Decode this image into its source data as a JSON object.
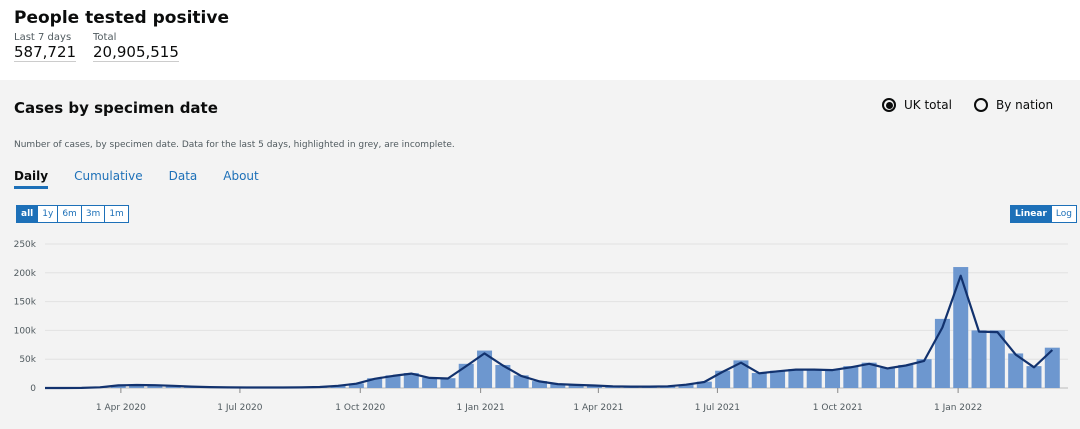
{
  "header": {
    "title": "People tested positive",
    "metrics": [
      {
        "label": "Last 7 days",
        "value": "587,721"
      },
      {
        "label": "Total",
        "value": "20,905,515"
      }
    ]
  },
  "card": {
    "title": "Cases by specimen date",
    "options": [
      {
        "label": "UK total",
        "selected": true
      },
      {
        "label": "By nation",
        "selected": false
      }
    ],
    "description": "Number of cases, by specimen date. Data for the last 5 days, highlighted in grey, are incomplete.",
    "tabs": [
      "Daily",
      "Cumulative",
      "Data",
      "About"
    ],
    "ranges": [
      "all",
      "1y",
      "6m",
      "3m",
      "1m"
    ],
    "scales": [
      "Linear",
      "Log"
    ]
  },
  "chart_data": {
    "type": "bar",
    "x": [
      "2020-02-03",
      "2020-02-17",
      "2020-03-02",
      "2020-03-16",
      "2020-03-30",
      "2020-04-13",
      "2020-04-27",
      "2020-05-11",
      "2020-05-25",
      "2020-06-08",
      "2020-06-22",
      "2020-07-06",
      "2020-07-20",
      "2020-08-03",
      "2020-08-17",
      "2020-08-31",
      "2020-09-14",
      "2020-09-28",
      "2020-10-12",
      "2020-10-26",
      "2020-11-09",
      "2020-11-23",
      "2020-12-07",
      "2020-12-21",
      "2021-01-04",
      "2021-01-18",
      "2021-02-01",
      "2021-02-15",
      "2021-03-01",
      "2021-03-15",
      "2021-03-29",
      "2021-04-12",
      "2021-04-26",
      "2021-05-10",
      "2021-05-24",
      "2021-06-07",
      "2021-06-21",
      "2021-07-05",
      "2021-07-19",
      "2021-08-02",
      "2021-08-16",
      "2021-08-30",
      "2021-09-13",
      "2021-09-27",
      "2021-10-11",
      "2021-10-25",
      "2021-11-08",
      "2021-11-22",
      "2021-12-06",
      "2021-12-20",
      "2022-01-03",
      "2022-01-17",
      "2022-01-31",
      "2022-02-14",
      "2022-02-28",
      "2022-03-14"
    ],
    "series": [
      {
        "color": "#6d97cf",
        "values": [
          0,
          0,
          200,
          1500,
          5000,
          5500,
          5000,
          4000,
          2500,
          1700,
          1200,
          900,
          800,
          900,
          1200,
          1800,
          4000,
          8000,
          17000,
          22000,
          26000,
          18000,
          17000,
          42000,
          65000,
          40000,
          22000,
          12000,
          7000,
          5500,
          4500,
          3000,
          2500,
          2500,
          3000,
          6000,
          11000,
          30000,
          48000,
          26000,
          30000,
          33000,
          33000,
          32000,
          38000,
          44000,
          35000,
          40000,
          50000,
          120000,
          210000,
          100000,
          100000,
          60000,
          38000,
          70000
        ]
      },
      {
        "color": "#12326e",
        "values": [
          0,
          0,
          150,
          1200,
          4500,
          5200,
          4800,
          3800,
          2400,
          1600,
          1100,
          900,
          800,
          900,
          1100,
          1700,
          3800,
          7500,
          16000,
          21000,
          25000,
          17500,
          16500,
          38000,
          60000,
          39000,
          21000,
          11500,
          6800,
          5300,
          4300,
          2900,
          2400,
          2400,
          2900,
          5800,
          10500,
          28000,
          44000,
          25500,
          29000,
          32000,
          32000,
          31000,
          36000,
          42000,
          34000,
          39000,
          47000,
          105000,
          195000,
          98000,
          97000,
          58000,
          36000,
          66000
        ]
      }
    ],
    "xlim": [
      "2020-02-03",
      "2022-03-26"
    ],
    "xticks": [
      {
        "value": "2020-04-01",
        "label": "1 Apr 2020"
      },
      {
        "value": "2020-07-01",
        "label": "1 Jul 2020"
      },
      {
        "value": "2020-10-01",
        "label": "1 Oct 2020"
      },
      {
        "value": "2021-01-01",
        "label": "1 Jan 2021"
      },
      {
        "value": "2021-04-01",
        "label": "1 Apr 2021"
      },
      {
        "value": "2021-07-01",
        "label": "1 Jul 2021"
      },
      {
        "value": "2021-10-01",
        "label": "1 Oct 2021"
      },
      {
        "value": "2022-01-01",
        "label": "1 Jan 2022"
      }
    ],
    "ylim": [
      0,
      260000
    ],
    "yticks": [
      0,
      {
        "value": 50000,
        "label": "50k"
      },
      {
        "value": 100000,
        "label": "100k"
      },
      {
        "value": 150000,
        "label": "150k"
      },
      {
        "value": 200000,
        "label": "200k"
      },
      {
        "value": 250000,
        "label": "250k"
      }
    ],
    "grid": true
  }
}
